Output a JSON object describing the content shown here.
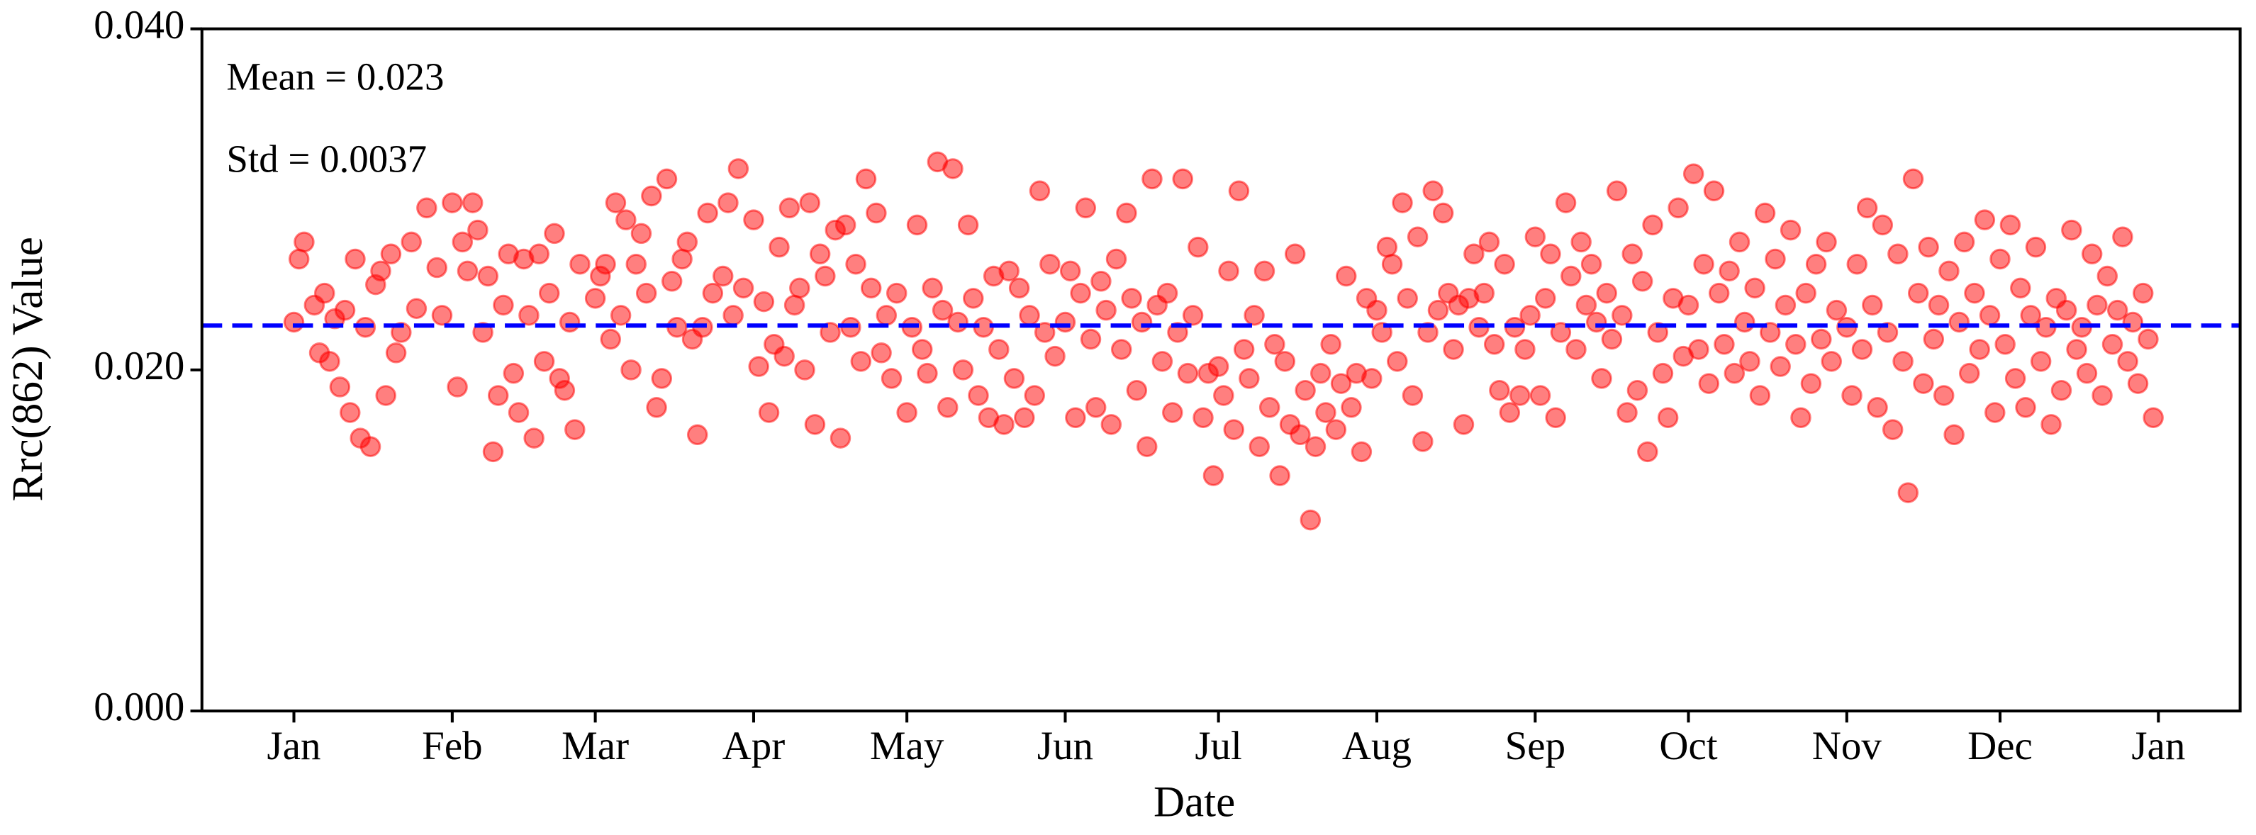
{
  "chart_data": {
    "type": "scatter",
    "x_label": "Date",
    "y_label": "Rrc(862) Value",
    "annotations": [
      "Mean = 0.023",
      "Std = 0.0037"
    ],
    "color": "#ff0000",
    "alpha": 0.5,
    "hline": {
      "value": 0.0226,
      "color": "#0000ff",
      "style": "dashed"
    },
    "xlim": [
      -18,
      381
    ],
    "ylim": [
      0,
      0.04
    ],
    "xticks": [
      {
        "value": 0,
        "label": "Jan"
      },
      {
        "value": 31,
        "label": "Feb"
      },
      {
        "value": 59,
        "label": "Mar"
      },
      {
        "value": 90,
        "label": "Apr"
      },
      {
        "value": 120,
        "label": "May"
      },
      {
        "value": 151,
        "label": "Jun"
      },
      {
        "value": 181,
        "label": "Jul"
      },
      {
        "value": 212,
        "label": "Aug"
      },
      {
        "value": 243,
        "label": "Sep"
      },
      {
        "value": 273,
        "label": "Oct"
      },
      {
        "value": 304,
        "label": "Nov"
      },
      {
        "value": 334,
        "label": "Dec"
      },
      {
        "value": 365,
        "label": "Jan"
      }
    ],
    "yticks": [
      {
        "value": 0,
        "label": "0.000"
      },
      {
        "value": 0.02,
        "label": "0.020"
      },
      {
        "value": 0.04,
        "label": "0.040"
      }
    ],
    "x": [
      0,
      1,
      2,
      4,
      5,
      6,
      7,
      8,
      9,
      10,
      11,
      12,
      13,
      14,
      15,
      16,
      17,
      18,
      19,
      20,
      21,
      23,
      24,
      26,
      28,
      29,
      31,
      32,
      33,
      34,
      35,
      36,
      37,
      38,
      39,
      40,
      41,
      42,
      43,
      44,
      45,
      46,
      47,
      48,
      49,
      50,
      51,
      52,
      53,
      54,
      55,
      56,
      59,
      60,
      61,
      62,
      63,
      64,
      65,
      66,
      67,
      68,
      69,
      70,
      71,
      72,
      73,
      74,
      75,
      76,
      77,
      78,
      79,
      80,
      81,
      82,
      84,
      85,
      86,
      87,
      88,
      90,
      91,
      92,
      93,
      94,
      95,
      96,
      97,
      98,
      99,
      100,
      101,
      102,
      103,
      104,
      105,
      106,
      107,
      108,
      109,
      110,
      111,
      112,
      113,
      114,
      115,
      116,
      117,
      118,
      120,
      121,
      122,
      123,
      124,
      125,
      126,
      127,
      128,
      129,
      130,
      131,
      132,
      133,
      134,
      135,
      136,
      137,
      138,
      139,
      140,
      141,
      142,
      143,
      144,
      145,
      146,
      147,
      148,
      149,
      151,
      152,
      153,
      154,
      155,
      156,
      157,
      158,
      159,
      160,
      161,
      162,
      163,
      164,
      165,
      166,
      167,
      168,
      169,
      170,
      171,
      172,
      173,
      174,
      175,
      176,
      177,
      178,
      179,
      180,
      181,
      182,
      183,
      184,
      185,
      186,
      187,
      188,
      189,
      190,
      191,
      192,
      193,
      194,
      195,
      196,
      197,
      198,
      199,
      200,
      201,
      202,
      203,
      204,
      205,
      206,
      207,
      208,
      209,
      210,
      211,
      212,
      213,
      214,
      215,
      216,
      217,
      218,
      219,
      220,
      221,
      222,
      223,
      224,
      225,
      226,
      227,
      228,
      229,
      230,
      231,
      232,
      233,
      234,
      235,
      236,
      237,
      238,
      239,
      240,
      241,
      242,
      243,
      244,
      245,
      246,
      247,
      248,
      249,
      250,
      251,
      252,
      253,
      254,
      255,
      256,
      257,
      258,
      259,
      260,
      261,
      262,
      263,
      264,
      265,
      266,
      267,
      268,
      269,
      270,
      271,
      272,
      273,
      274,
      275,
      276,
      277,
      278,
      279,
      280,
      281,
      282,
      283,
      284,
      285,
      286,
      287,
      288,
      289,
      290,
      291,
      292,
      293,
      294,
      295,
      296,
      297,
      298,
      299,
      300,
      301,
      302,
      304,
      305,
      306,
      307,
      308,
      309,
      310,
      311,
      312,
      313,
      314,
      315,
      316,
      317,
      318,
      319,
      320,
      321,
      322,
      323,
      324,
      325,
      326,
      327,
      328,
      329,
      330,
      331,
      332,
      333,
      334,
      335,
      336,
      337,
      338,
      339,
      340,
      341,
      342,
      343,
      344,
      345,
      346,
      347,
      348,
      349,
      350,
      351,
      352,
      353,
      354,
      355,
      356,
      357,
      358,
      359,
      360,
      361,
      362,
      363,
      364
    ],
    "values": [
      0.0228,
      0.0265,
      0.0275,
      0.0238,
      0.021,
      0.0245,
      0.0205,
      0.023,
      0.019,
      0.0235,
      0.0175,
      0.0265,
      0.016,
      0.0225,
      0.0155,
      0.025,
      0.0258,
      0.0185,
      0.0268,
      0.021,
      0.0222,
      0.0275,
      0.0236,
      0.0295,
      0.026,
      0.0232,
      0.0298,
      0.019,
      0.0275,
      0.0258,
      0.0298,
      0.0282,
      0.0222,
      0.0255,
      0.0152,
      0.0185,
      0.0238,
      0.0268,
      0.0198,
      0.0175,
      0.0265,
      0.0232,
      0.016,
      0.0268,
      0.0205,
      0.0245,
      0.028,
      0.0195,
      0.0188,
      0.0228,
      0.0165,
      0.0262,
      0.0242,
      0.0255,
      0.0262,
      0.0218,
      0.0298,
      0.0232,
      0.0288,
      0.02,
      0.0262,
      0.028,
      0.0245,
      0.0302,
      0.0178,
      0.0195,
      0.0312,
      0.0252,
      0.0225,
      0.0265,
      0.0275,
      0.0218,
      0.0162,
      0.0225,
      0.0292,
      0.0245,
      0.0255,
      0.0298,
      0.0232,
      0.0318,
      0.0248,
      0.0288,
      0.0202,
      0.024,
      0.0175,
      0.0215,
      0.0272,
      0.0208,
      0.0295,
      0.0238,
      0.0248,
      0.02,
      0.0298,
      0.0168,
      0.0268,
      0.0255,
      0.0222,
      0.0282,
      0.016,
      0.0285,
      0.0225,
      0.0262,
      0.0205,
      0.0312,
      0.0248,
      0.0292,
      0.021,
      0.0232,
      0.0195,
      0.0245,
      0.0175,
      0.0225,
      0.0285,
      0.0212,
      0.0198,
      0.0248,
      0.0322,
      0.0235,
      0.0178,
      0.0318,
      0.0228,
      0.02,
      0.0285,
      0.0242,
      0.0185,
      0.0225,
      0.0172,
      0.0255,
      0.0212,
      0.0168,
      0.0258,
      0.0195,
      0.0248,
      0.0172,
      0.0232,
      0.0185,
      0.0305,
      0.0222,
      0.0262,
      0.0208,
      0.0228,
      0.0258,
      0.0172,
      0.0245,
      0.0295,
      0.0218,
      0.0178,
      0.0252,
      0.0235,
      0.0168,
      0.0265,
      0.0212,
      0.0292,
      0.0242,
      0.0188,
      0.0228,
      0.0155,
      0.0312,
      0.0238,
      0.0205,
      0.0245,
      0.0175,
      0.0222,
      0.0312,
      0.0198,
      0.0232,
      0.0272,
      0.0172,
      0.0198,
      0.0138,
      0.0202,
      0.0185,
      0.0258,
      0.0165,
      0.0305,
      0.0212,
      0.0195,
      0.0232,
      0.0155,
      0.0258,
      0.0178,
      0.0215,
      0.0138,
      0.0205,
      0.0168,
      0.0268,
      0.0162,
      0.0188,
      0.0112,
      0.0155,
      0.0198,
      0.0175,
      0.0215,
      0.0165,
      0.0192,
      0.0255,
      0.0178,
      0.0198,
      0.0152,
      0.0242,
      0.0195,
      0.0235,
      0.0222,
      0.0272,
      0.0262,
      0.0205,
      0.0298,
      0.0242,
      0.0185,
      0.0278,
      0.0158,
      0.0222,
      0.0305,
      0.0235,
      0.0292,
      0.0245,
      0.0212,
      0.0238,
      0.0168,
      0.0242,
      0.0268,
      0.0225,
      0.0245,
      0.0275,
      0.0215,
      0.0188,
      0.0262,
      0.0175,
      0.0225,
      0.0185,
      0.0212,
      0.0232,
      0.0278,
      0.0185,
      0.0242,
      0.0268,
      0.0172,
      0.0222,
      0.0298,
      0.0255,
      0.0212,
      0.0275,
      0.0238,
      0.0262,
      0.0228,
      0.0195,
      0.0245,
      0.0218,
      0.0305,
      0.0232,
      0.0175,
      0.0268,
      0.0188,
      0.0252,
      0.0152,
      0.0285,
      0.0222,
      0.0198,
      0.0172,
      0.0242,
      0.0295,
      0.0208,
      0.0238,
      0.0315,
      0.0212,
      0.0262,
      0.0192,
      0.0305,
      0.0245,
      0.0215,
      0.0258,
      0.0198,
      0.0275,
      0.0228,
      0.0205,
      0.0248,
      0.0185,
      0.0292,
      0.0222,
      0.0265,
      0.0202,
      0.0238,
      0.0282,
      0.0215,
      0.0172,
      0.0245,
      0.0192,
      0.0262,
      0.0218,
      0.0275,
      0.0205,
      0.0235,
      0.0225,
      0.0185,
      0.0262,
      0.0212,
      0.0295,
      0.0238,
      0.0178,
      0.0285,
      0.0222,
      0.0165,
      0.0268,
      0.0205,
      0.0128,
      0.0312,
      0.0245,
      0.0192,
      0.0272,
      0.0218,
      0.0238,
      0.0185,
      0.0258,
      0.0162,
      0.0228,
      0.0275,
      0.0198,
      0.0245,
      0.0212,
      0.0288,
      0.0232,
      0.0175,
      0.0265,
      0.0215,
      0.0285,
      0.0195,
      0.0248,
      0.0178,
      0.0232,
      0.0272,
      0.0205,
      0.0225,
      0.0168,
      0.0242,
      0.0188,
      0.0235,
      0.0282,
      0.0212,
      0.0225,
      0.0198,
      0.0268,
      0.0238,
      0.0185,
      0.0255,
      0.0215,
      0.0235,
      0.0278,
      0.0205,
      0.0228,
      0.0192,
      0.0245,
      0.0218,
      0.0172
    ]
  }
}
